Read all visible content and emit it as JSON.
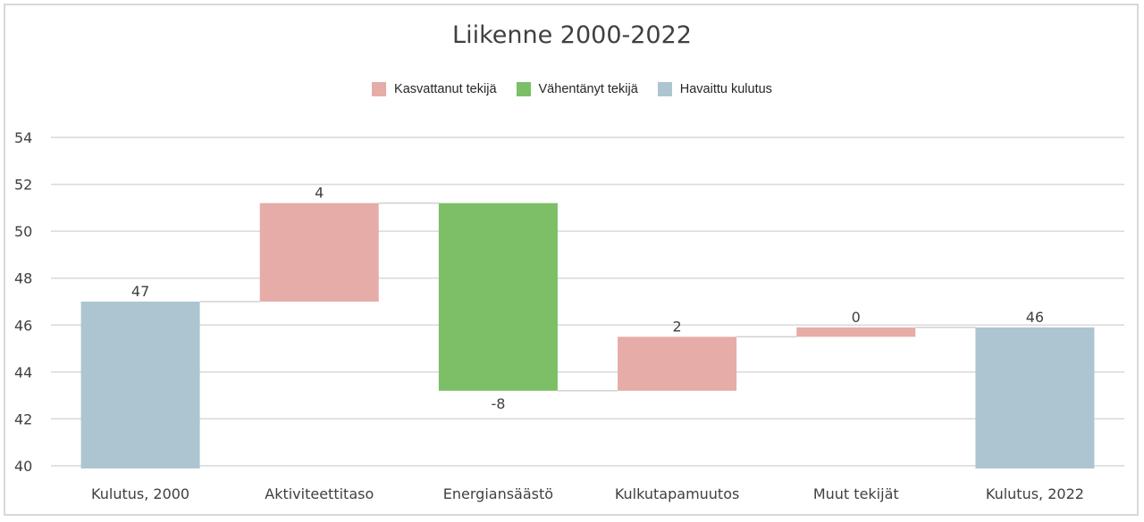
{
  "chart_data": {
    "type": "waterfall",
    "title": "Liikenne 2000-2022",
    "xlabel": "",
    "ylabel": "",
    "ylim": [
      40,
      54
    ],
    "yticks": [
      40,
      42,
      44,
      46,
      48,
      50,
      52,
      54
    ],
    "grid": true,
    "legend_position": "top",
    "legend": [
      {
        "label": "Kasvattanut tekijä",
        "color": "#e6aca8"
      },
      {
        "label": "Vähentänyt tekijä",
        "color": "#7cbf66"
      },
      {
        "label": "Havaittu kulutus",
        "color": "#acc5d1"
      }
    ],
    "categories": [
      "Kulutus, 2000",
      "Aktiviteettitaso",
      "Energiansäästö",
      "Kulkutapamuutos",
      "Muut tekijät",
      "Kulutus, 2022"
    ],
    "bars": [
      {
        "category": "Kulutus, 2000",
        "kind": "total",
        "start": 40,
        "end": 47.0,
        "label": "47",
        "color": "#acc5d1"
      },
      {
        "category": "Aktiviteettitaso",
        "kind": "increase",
        "start": 47.0,
        "end": 51.2,
        "label": "4",
        "color": "#e6aca8"
      },
      {
        "category": "Energiansäästö",
        "kind": "decrease",
        "start": 51.2,
        "end": 43.2,
        "label": "-8",
        "color": "#7cbf66"
      },
      {
        "category": "Kulkutapamuutos",
        "kind": "increase",
        "start": 43.2,
        "end": 45.5,
        "label": "2",
        "color": "#e6aca8"
      },
      {
        "category": "Muut tekijät",
        "kind": "increase",
        "start": 45.5,
        "end": 45.9,
        "label": "0",
        "color": "#e6aca8"
      },
      {
        "category": "Kulutus, 2022",
        "kind": "total",
        "start": 40,
        "end": 45.9,
        "label": "46",
        "color": "#acc5d1"
      }
    ],
    "values": [
      47,
      4,
      -8,
      2,
      0,
      46
    ]
  }
}
